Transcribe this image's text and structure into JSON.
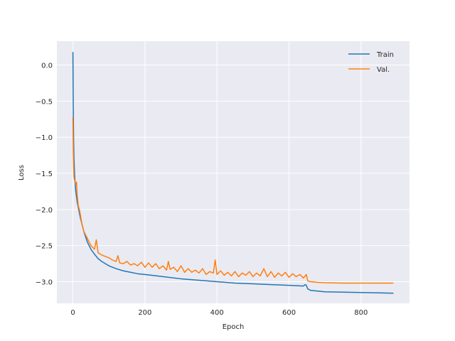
{
  "chart_data": {
    "type": "line",
    "title": "",
    "xlabel": "Epoch",
    "ylabel": "Loss",
    "xlim": [
      -44.5,
      934.5
    ],
    "ylim": [
      -3.3,
      0.33
    ],
    "xticks": [
      0,
      200,
      400,
      600,
      800
    ],
    "yticks": [
      0.0,
      -0.5,
      -1.0,
      -1.5,
      -2.0,
      -2.5,
      -3.0
    ],
    "xtick_labels": [
      "0",
      "200",
      "400",
      "600",
      "800"
    ],
    "ytick_labels": [
      "0.0",
      "−0.5",
      "−1.0",
      "−1.5",
      "−2.0",
      "−2.5",
      "−3.0"
    ],
    "grid": true,
    "style": "seaborn-darkgrid",
    "background": "#EAEAF2",
    "legend_position": "top-right",
    "series": [
      {
        "name": "Train",
        "color": "#1f77b4",
        "x": [
          0,
          1,
          2,
          3,
          5,
          8,
          12,
          16,
          20,
          25,
          30,
          40,
          50,
          60,
          70,
          80,
          90,
          100,
          120,
          140,
          160,
          180,
          200,
          250,
          300,
          350,
          400,
          450,
          500,
          550,
          600,
          640,
          645,
          648,
          652,
          660,
          680,
          700,
          750,
          800,
          850,
          890
        ],
        "y": [
          0.18,
          -0.55,
          -1.05,
          -1.3,
          -1.55,
          -1.75,
          -1.9,
          -2.0,
          -2.1,
          -2.2,
          -2.3,
          -2.45,
          -2.55,
          -2.62,
          -2.68,
          -2.72,
          -2.75,
          -2.78,
          -2.82,
          -2.85,
          -2.87,
          -2.89,
          -2.9,
          -2.93,
          -2.96,
          -2.98,
          -3.0,
          -3.02,
          -3.03,
          -3.04,
          -3.05,
          -3.06,
          -3.04,
          -3.05,
          -3.1,
          -3.12,
          -3.13,
          -3.14,
          -3.145,
          -3.15,
          -3.155,
          -3.16
        ]
      },
      {
        "name": "Val.",
        "color": "#ff7f0e",
        "x": [
          0,
          1,
          2,
          3,
          5,
          8,
          10,
          12,
          15,
          18,
          20,
          25,
          30,
          40,
          50,
          60,
          65,
          70,
          80,
          90,
          100,
          110,
          120,
          125,
          130,
          140,
          150,
          160,
          170,
          180,
          190,
          200,
          210,
          220,
          230,
          240,
          250,
          260,
          265,
          270,
          280,
          290,
          300,
          310,
          320,
          330,
          340,
          350,
          360,
          370,
          380,
          390,
          395,
          400,
          410,
          420,
          430,
          440,
          450,
          460,
          470,
          480,
          490,
          500,
          510,
          520,
          530,
          540,
          550,
          560,
          570,
          580,
          590,
          600,
          610,
          620,
          630,
          640,
          645,
          648,
          652,
          660,
          680,
          700,
          750,
          800,
          850,
          890
        ],
        "y": [
          -0.72,
          -1.2,
          -1.4,
          -1.55,
          -1.6,
          -1.65,
          -1.62,
          -1.8,
          -1.95,
          -2.0,
          -2.05,
          -2.2,
          -2.3,
          -2.4,
          -2.5,
          -2.55,
          -2.42,
          -2.6,
          -2.63,
          -2.65,
          -2.67,
          -2.7,
          -2.72,
          -2.64,
          -2.74,
          -2.75,
          -2.72,
          -2.77,
          -2.75,
          -2.78,
          -2.73,
          -2.8,
          -2.74,
          -2.8,
          -2.75,
          -2.82,
          -2.78,
          -2.84,
          -2.72,
          -2.83,
          -2.8,
          -2.86,
          -2.78,
          -2.87,
          -2.82,
          -2.87,
          -2.84,
          -2.88,
          -2.82,
          -2.9,
          -2.86,
          -2.88,
          -2.7,
          -2.9,
          -2.85,
          -2.91,
          -2.87,
          -2.92,
          -2.86,
          -2.93,
          -2.88,
          -2.91,
          -2.86,
          -2.93,
          -2.88,
          -2.92,
          -2.82,
          -2.93,
          -2.86,
          -2.94,
          -2.88,
          -2.92,
          -2.87,
          -2.94,
          -2.89,
          -2.93,
          -2.9,
          -2.95,
          -2.92,
          -2.9,
          -2.99,
          -3.0,
          -3.01,
          -3.015,
          -3.02,
          -3.02,
          -3.02,
          -3.02
        ]
      }
    ]
  }
}
